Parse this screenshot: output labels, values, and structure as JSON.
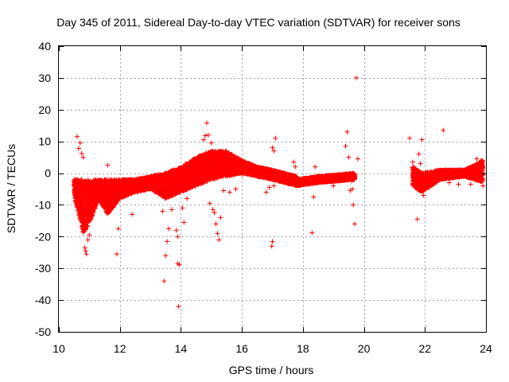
{
  "chart_data": {
    "type": "scatter",
    "title": "Day 345 of 2011, Sidereal Day-to-day VTEC variation (SDTVAR) for receiver sons",
    "xlabel": "GPS time / hours",
    "ylabel": "SDTVAR / TECUs",
    "xlim": [
      10,
      24
    ],
    "ylim": [
      -50,
      40
    ],
    "x_ticks": [
      10,
      12,
      14,
      16,
      18,
      20,
      22,
      24
    ],
    "y_ticks": [
      -50,
      -40,
      -30,
      -20,
      -10,
      0,
      10,
      20,
      30,
      40
    ],
    "x_tick_labels": [
      "10",
      "12",
      "14",
      "16",
      "18",
      "20",
      "22",
      "24"
    ],
    "y_tick_labels": [
      "-50",
      "-40",
      "-30",
      "-20",
      "-10",
      "0",
      "10",
      "20",
      "30",
      "40"
    ],
    "grid": true,
    "marker": "+",
    "marker_color": "#ff0000",
    "series": [
      {
        "name": "SDTVAR",
        "segment_1": {
          "x_start": 10.5,
          "x_end": 17.8,
          "envelope": [
            {
              "x": 10.5,
              "low": -7,
              "high": -2
            },
            {
              "x": 10.8,
              "low": -19,
              "high": -2
            },
            {
              "x": 11.0,
              "low": -16,
              "high": -2
            },
            {
              "x": 11.3,
              "low": -8,
              "high": -2
            },
            {
              "x": 11.6,
              "low": -13,
              "high": -2
            },
            {
              "x": 12.0,
              "low": -8,
              "high": -2
            },
            {
              "x": 12.5,
              "low": -6,
              "high": -2
            },
            {
              "x": 13.0,
              "low": -5,
              "high": -1
            },
            {
              "x": 13.5,
              "low": -8,
              "high": 0
            },
            {
              "x": 14.0,
              "low": -6,
              "high": 2
            },
            {
              "x": 14.5,
              "low": -4,
              "high": 5
            },
            {
              "x": 15.0,
              "low": -2,
              "high": 7
            },
            {
              "x": 15.5,
              "low": -1,
              "high": 7
            },
            {
              "x": 16.0,
              "low": 0,
              "high": 4
            },
            {
              "x": 16.5,
              "low": -1,
              "high": 2
            },
            {
              "x": 17.0,
              "low": -2,
              "high": 1
            },
            {
              "x": 17.8,
              "low": -4,
              "high": -1
            }
          ]
        },
        "segment_2": {
          "x_start": 17.8,
          "x_end": 19.7,
          "envelope": [
            {
              "x": 17.8,
              "low": -4,
              "high": -2
            },
            {
              "x": 18.5,
              "low": -3,
              "high": -1
            },
            {
              "x": 19.7,
              "low": -2,
              "high": 0
            }
          ]
        },
        "segment_3": {
          "x_start": 21.6,
          "x_end": 23.9,
          "envelope": [
            {
              "x": 21.6,
              "low": -4,
              "high": 2
            },
            {
              "x": 21.9,
              "low": -6,
              "high": 0
            },
            {
              "x": 22.5,
              "low": -2,
              "high": 1
            },
            {
              "x": 23.3,
              "low": -1,
              "high": 1
            },
            {
              "x": 23.9,
              "low": -3,
              "high": 4
            }
          ]
        },
        "outliers": [
          [
            10.6,
            11.5
          ],
          [
            10.65,
            7.8
          ],
          [
            10.7,
            9.5
          ],
          [
            10.75,
            6.2
          ],
          [
            10.8,
            5.0
          ],
          [
            10.85,
            -23.5
          ],
          [
            10.9,
            -25.5
          ],
          [
            10.95,
            -21.0
          ],
          [
            11.0,
            -19.5
          ],
          [
            10.88,
            -24.5
          ],
          [
            11.6,
            2.5
          ],
          [
            11.9,
            -25.5
          ],
          [
            11.95,
            -17.5
          ],
          [
            12.4,
            -13.0
          ],
          [
            12.6,
            -6.0
          ],
          [
            13.45,
            -34.0
          ],
          [
            13.5,
            -26.0
          ],
          [
            13.55,
            -21.5
          ],
          [
            13.6,
            -17.5
          ],
          [
            13.4,
            -12.0
          ],
          [
            13.7,
            -11.5
          ],
          [
            13.85,
            -18.0
          ],
          [
            13.9,
            -28.5
          ],
          [
            13.95,
            -28.8
          ],
          [
            13.92,
            -42.0
          ],
          [
            13.9,
            -20.0
          ],
          [
            14.1,
            -15.5
          ],
          [
            14.05,
            -11.0
          ],
          [
            14.2,
            -8.0
          ],
          [
            14.75,
            10.5
          ],
          [
            14.8,
            11.8
          ],
          [
            14.85,
            15.8
          ],
          [
            14.9,
            12.0
          ],
          [
            15.0,
            9.5
          ],
          [
            14.95,
            -9.5
          ],
          [
            15.05,
            -11.5
          ],
          [
            15.1,
            -12.5
          ],
          [
            15.15,
            -16.0
          ],
          [
            15.2,
            -19.0
          ],
          [
            15.25,
            -21.0
          ],
          [
            15.3,
            -14.0
          ],
          [
            15.4,
            -5.5
          ],
          [
            15.6,
            -6.0
          ],
          [
            15.8,
            -5.0
          ],
          [
            16.0,
            -0.5
          ],
          [
            16.8,
            -6.0
          ],
          [
            16.9,
            -4.5
          ],
          [
            17.0,
            -21.5
          ],
          [
            16.98,
            -23.0
          ],
          [
            17.05,
            -4.0
          ],
          [
            17.0,
            8.0
          ],
          [
            17.05,
            7.0
          ],
          [
            17.1,
            11.0
          ],
          [
            17.15,
            -1.5
          ],
          [
            17.7,
            3.5
          ],
          [
            17.75,
            2.0
          ],
          [
            18.3,
            -18.8
          ],
          [
            18.35,
            -7.5
          ],
          [
            18.4,
            2.0
          ],
          [
            19.0,
            -4.0
          ],
          [
            19.4,
            8.5
          ],
          [
            19.45,
            13.0
          ],
          [
            19.5,
            5.0
          ],
          [
            19.55,
            -5.5
          ],
          [
            19.6,
            -2.5
          ],
          [
            19.62,
            -5.0
          ],
          [
            19.65,
            -10.0
          ],
          [
            19.7,
            -16.0
          ],
          [
            19.75,
            30.0
          ],
          [
            19.8,
            4.5
          ],
          [
            21.5,
            11.0
          ],
          [
            21.6,
            3.5
          ],
          [
            21.65,
            2.0
          ],
          [
            21.7,
            -3.0
          ],
          [
            21.75,
            -14.5
          ],
          [
            21.8,
            6.0
          ],
          [
            21.85,
            3.0
          ],
          [
            21.9,
            10.5
          ],
          [
            21.95,
            -7.0
          ],
          [
            22.1,
            -3.5
          ],
          [
            22.6,
            13.5
          ],
          [
            22.8,
            -3.0
          ],
          [
            23.1,
            -3.5
          ],
          [
            23.5,
            -3.5
          ],
          [
            23.7,
            4.5
          ],
          [
            23.85,
            4.0
          ],
          [
            23.9,
            -4.0
          ]
        ]
      }
    ]
  }
}
